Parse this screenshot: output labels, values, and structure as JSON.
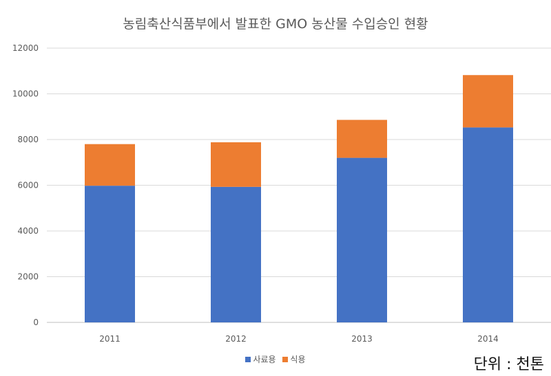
{
  "chart_data": {
    "type": "bar",
    "stacked": true,
    "title": "농림축산식품부에서 발표한 GMO 농산물 수입승인 현황",
    "categories": [
      "2011",
      "2012",
      "2013",
      "2014"
    ],
    "series": [
      {
        "name": "사료용",
        "color": "#4472c4",
        "values": [
          5980,
          5930,
          7200,
          8530
        ]
      },
      {
        "name": "식용",
        "color": "#ed7d31",
        "values": [
          1820,
          1950,
          1660,
          2290
        ]
      }
    ],
    "ylim": [
      0,
      12000
    ],
    "yticks": [
      "0",
      "2000",
      "4000",
      "6000",
      "8000",
      "10000",
      "12000"
    ],
    "grid": true,
    "legend": "bottom",
    "xlabel": "",
    "ylabel": ""
  },
  "unit_note": "단위 : 천톤"
}
